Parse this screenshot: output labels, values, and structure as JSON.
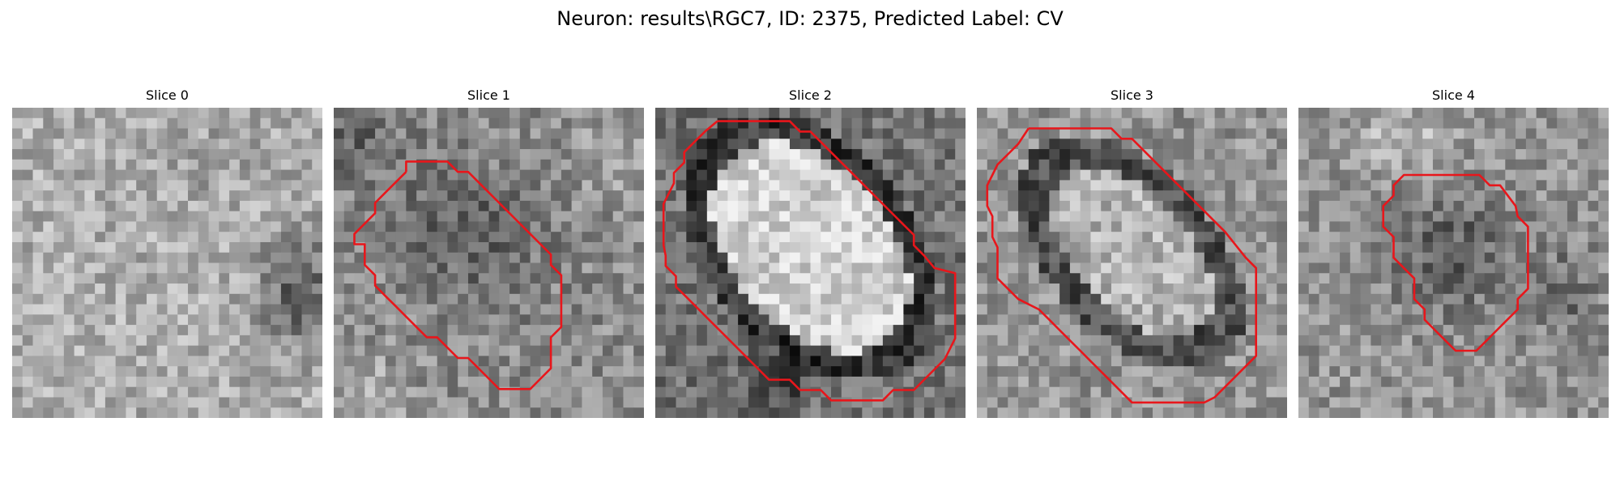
{
  "figure": {
    "title": "Neuron: results\\RGC7, ID: 2375, Predicted Label: CV"
  },
  "slices": [
    {
      "label": "Slice 0",
      "has_contour": false,
      "texture": "light",
      "seed": 11
    },
    {
      "label": "Slice 1",
      "has_contour": true,
      "texture": "dark-blob",
      "seed": 23
    },
    {
      "label": "Slice 2",
      "has_contour": true,
      "texture": "bright-nucleus",
      "seed": 37
    },
    {
      "label": "Slice 3",
      "has_contour": true,
      "texture": "ring-nucleus",
      "seed": 41
    },
    {
      "label": "Slice 4",
      "has_contour": true,
      "texture": "small-dark",
      "seed": 53
    }
  ],
  "colors": {
    "contour": "#e8161b"
  }
}
